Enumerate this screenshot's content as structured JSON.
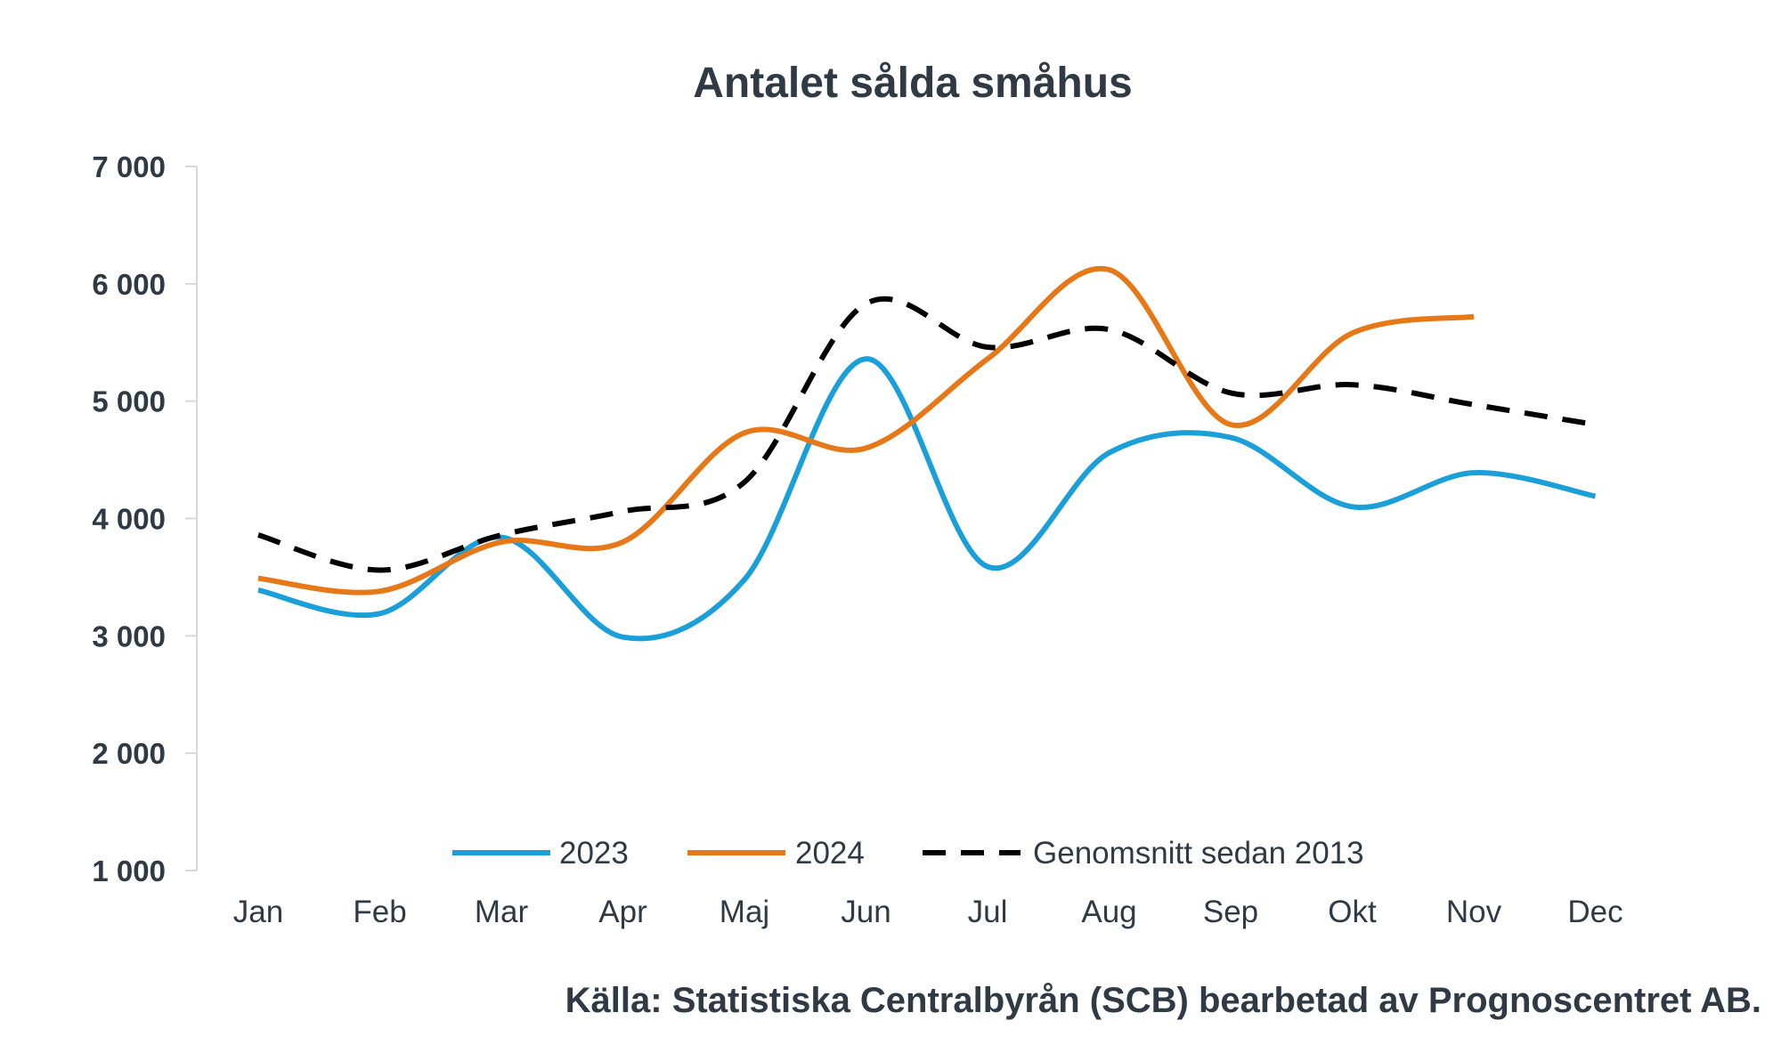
{
  "chart_data": {
    "type": "line",
    "title": "Antalet sålda småhus",
    "categories": [
      "Jan",
      "Feb",
      "Mar",
      "Apr",
      "Maj",
      "Jun",
      "Jul",
      "Aug",
      "Sep",
      "Okt",
      "Nov",
      "Dec"
    ],
    "y_tick_labels": [
      "1 000",
      "2 000",
      "3 000",
      "4 000",
      "5 000",
      "6 000",
      "7 000"
    ],
    "y_tick_values": [
      1000,
      2000,
      3000,
      4000,
      5000,
      6000,
      7000
    ],
    "ylim": [
      1000,
      7000
    ],
    "grid": false,
    "legend_position": "bottom",
    "series": [
      {
        "name": "2023",
        "color": "#1a9fd9",
        "dash": "solid",
        "values": [
          3390,
          3190,
          3840,
          2990,
          3480,
          5360,
          3590,
          4560,
          4690,
          4100,
          4390,
          4190
        ]
      },
      {
        "name": "2024",
        "color": "#e67817",
        "dash": "solid",
        "values": [
          3490,
          3380,
          3800,
          3800,
          4730,
          4600,
          5360,
          6120,
          4800,
          5580,
          5720,
          null
        ]
      },
      {
        "name": "Genomsnitt sedan 2013",
        "color": "#000000",
        "dash": "dashed",
        "values": [
          3860,
          3560,
          3860,
          4060,
          4310,
          5830,
          5460,
          5610,
          5070,
          5140,
          4970,
          4800
        ]
      }
    ],
    "source": "Källa: Statistiska Centralbyrån (SCB) bearbetad av Prognoscentret AB."
  }
}
